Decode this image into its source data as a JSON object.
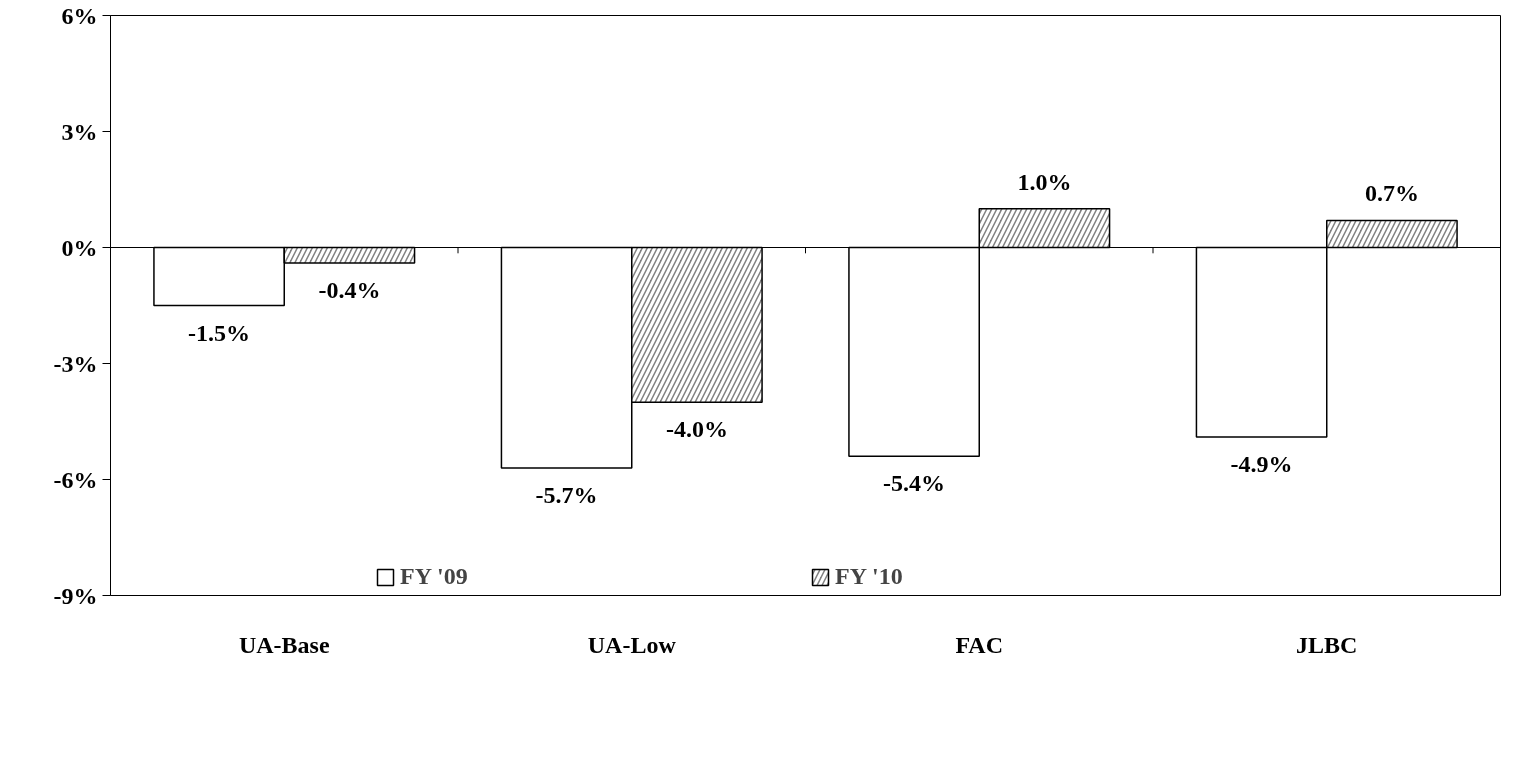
{
  "chart_data": {
    "type": "bar",
    "categories": [
      "UA-Base",
      "UA-Low",
      "FAC",
      "JLBC"
    ],
    "series": [
      {
        "name": "FY '09",
        "color": "#ffffff",
        "values": [
          -1.5,
          -5.7,
          -5.4,
          -4.9
        ],
        "value_labels": [
          "-1.5%",
          "-5.7%",
          "-5.4%",
          "-4.9%"
        ]
      },
      {
        "name": "FY '10",
        "color": "#808080",
        "values": [
          -0.4,
          -4.0,
          1.0,
          0.7
        ],
        "value_labels": [
          "-0.4%",
          "-4.0%",
          "1.0%",
          "0.7%"
        ]
      }
    ],
    "ylim": [
      -9,
      6
    ],
    "yticks": [
      {
        "value": -9,
        "label": "-9%"
      },
      {
        "value": -6,
        "label": "-6%"
      },
      {
        "value": -3,
        "label": "-3%"
      },
      {
        "value": 0,
        "label": "0%"
      },
      {
        "value": 3,
        "label": "3%"
      },
      {
        "value": 6,
        "label": "6%"
      }
    ],
    "ref_lines": [
      {
        "axis": "y",
        "value": 0
      }
    ],
    "grid": false,
    "legend": "bottom"
  }
}
